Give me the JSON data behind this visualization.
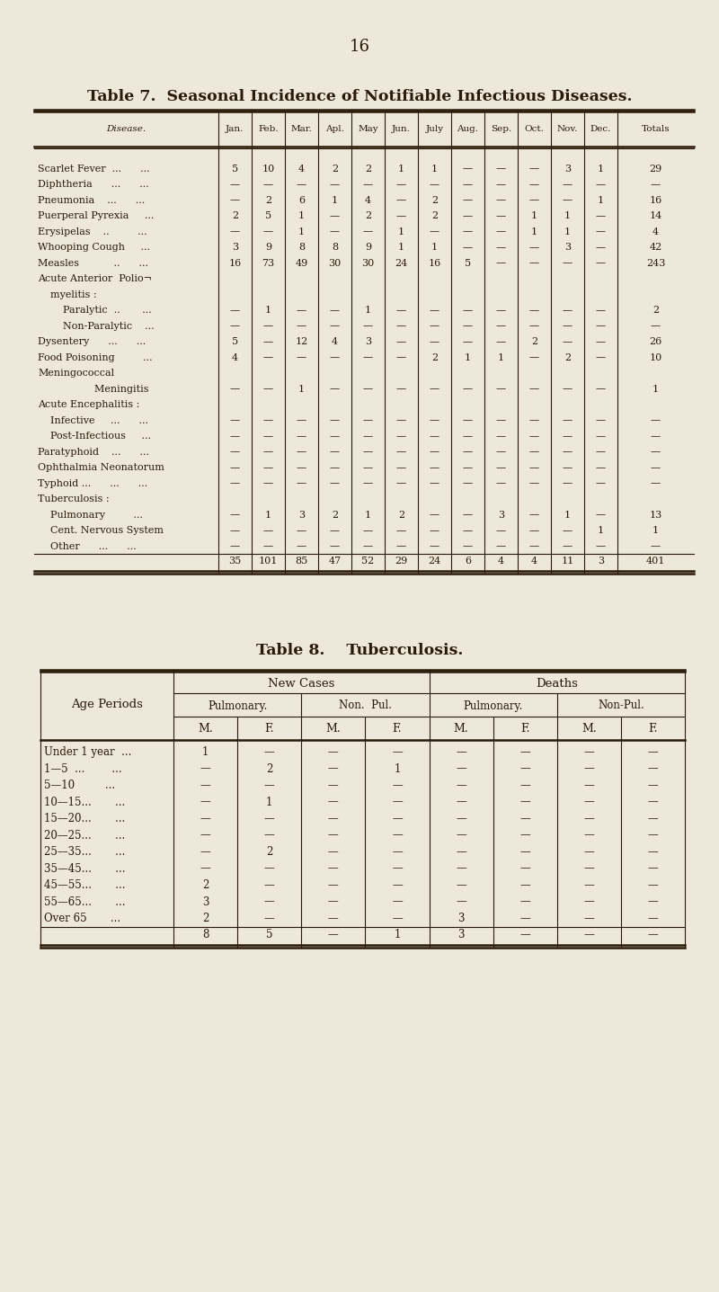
{
  "page_number": "16",
  "bg_color": "#ede8da",
  "table7_title": "Table 7.  Seasonal Incidence of Notifiable Infectious Diseases.",
  "table7_header": [
    "Disease.",
    "Jan.",
    "Feb.",
    "Mar.",
    "Apl.",
    "May",
    "Jun.",
    "July",
    "Aug.",
    "Sep.",
    "Oct.",
    "Nov.",
    "Dec.",
    "Totals"
  ],
  "table7_rows": [
    [
      "Scarlet Fever  ...      ...",
      "5",
      "10",
      "4",
      "2",
      "2",
      "1",
      "1",
      "—",
      "—",
      "—",
      "3",
      "1",
      "29"
    ],
    [
      "Diphtheria      ...      ...",
      "—",
      "—",
      "—",
      "—",
      "—",
      "—",
      "—",
      "—",
      "—",
      "—",
      "—",
      "—",
      "—"
    ],
    [
      "Pneumonia    ...      ...",
      "—",
      "2",
      "6",
      "1",
      "4",
      "—",
      "2",
      "—",
      "—",
      "—",
      "—",
      "1",
      "16"
    ],
    [
      "Puerperal Pyrexia     ...",
      "2",
      "5",
      "1",
      "—",
      "2",
      "—",
      "2",
      "—",
      "—",
      "1",
      "1",
      "—",
      "14"
    ],
    [
      "Erysipelas    ..         ...",
      "—",
      "—",
      "1",
      "—",
      "—",
      "1",
      "—",
      "—",
      "—",
      "1",
      "1",
      "—",
      "4"
    ],
    [
      "Whooping Cough     ...",
      "3",
      "9",
      "8",
      "8",
      "9",
      "1",
      "1",
      "—",
      "—",
      "—",
      "3",
      "—",
      "42"
    ],
    [
      "Measles           ..      ...",
      "16",
      "73",
      "49",
      "30",
      "30",
      "24",
      "16",
      "5",
      "—",
      "—",
      "—",
      "—",
      "243"
    ],
    [
      "Acute Anterior  Polio¬",
      "",
      "",
      "",
      "",
      "",
      "",
      "",
      "",
      "",
      "",
      "",
      "",
      ""
    ],
    [
      "    myelitis :",
      "",
      "",
      "",
      "",
      "",
      "",
      "",
      "",
      "",
      "",
      "",
      "",
      ""
    ],
    [
      "        Paralytic  ..       ...",
      "—",
      "1",
      "—",
      "—",
      "1",
      "—",
      "—",
      "—",
      "—",
      "—",
      "—",
      "—",
      "2"
    ],
    [
      "        Non-Paralytic    ...",
      "—",
      "—",
      "—",
      "—",
      "—",
      "—",
      "—",
      "—",
      "—",
      "—",
      "—",
      "—",
      "—"
    ],
    [
      "Dysentery      ...      ...",
      "5",
      "—",
      "12",
      "4",
      "3",
      "—",
      "—",
      "—",
      "—",
      "2",
      "—",
      "—",
      "26"
    ],
    [
      "Food Poisoning         ...",
      "4",
      "—",
      "—",
      "—",
      "—",
      "—",
      "2",
      "1",
      "1",
      "—",
      "2",
      "—",
      "10"
    ],
    [
      "Meningococcal",
      "",
      "",
      "",
      "",
      "",
      "",
      "",
      "",
      "",
      "",
      "",
      "",
      ""
    ],
    [
      "                  Meningitis",
      "—",
      "—",
      "1",
      "—",
      "—",
      "—",
      "—",
      "—",
      "—",
      "—",
      "—",
      "—",
      "1"
    ],
    [
      "Acute Encephalitis :",
      "",
      "",
      "",
      "",
      "",
      "",
      "",
      "",
      "",
      "",
      "",
      "",
      ""
    ],
    [
      "    Infective     ...      ...",
      "—",
      "—",
      "—",
      "—",
      "—",
      "—",
      "—",
      "—",
      "—",
      "—",
      "—",
      "—",
      "—"
    ],
    [
      "    Post-Infectious     ...",
      "—",
      "—",
      "—",
      "—",
      "—",
      "—",
      "—",
      "—",
      "—",
      "—",
      "—",
      "—",
      "—"
    ],
    [
      "Paratyphoid    ...      ...",
      "—",
      "—",
      "—",
      "—",
      "—",
      "—",
      "—",
      "—",
      "—",
      "—",
      "—",
      "—",
      "—"
    ],
    [
      "Ophthalmia Neonatorum",
      "—",
      "—",
      "—",
      "—",
      "—",
      "—",
      "—",
      "—",
      "—",
      "—",
      "—",
      "—",
      "—"
    ],
    [
      "Typhoid ...      ...      ...",
      "—",
      "—",
      "—",
      "—",
      "—",
      "—",
      "—",
      "—",
      "—",
      "—",
      "—",
      "—",
      "—"
    ],
    [
      "Tuberculosis :",
      "",
      "",
      "",
      "",
      "",
      "",
      "",
      "",
      "",
      "",
      "",
      "",
      ""
    ],
    [
      "    Pulmonary         ...",
      "—",
      "1",
      "3",
      "2",
      "1",
      "2",
      "—",
      "—",
      "3",
      "—",
      "1",
      "—",
      "13"
    ],
    [
      "    Cent. Nervous System",
      "—",
      "—",
      "—",
      "—",
      "—",
      "—",
      "—",
      "—",
      "—",
      "—",
      "—",
      "1",
      "1"
    ],
    [
      "    Other      ...      ...",
      "—",
      "—",
      "—",
      "—",
      "—",
      "—",
      "—",
      "—",
      "—",
      "—",
      "—",
      "—",
      "—"
    ]
  ],
  "table7_totals": [
    "",
    "35",
    "101",
    "85",
    "47",
    "52",
    "29",
    "24",
    "6",
    "4",
    "4",
    "11",
    "3",
    "401"
  ],
  "table8_title": "Table 8.    Tuberculosis.",
  "table8_rows": [
    [
      "Under 1 year  ...",
      "1",
      "—",
      "—",
      "—",
      "—",
      "—",
      "—",
      "—"
    ],
    [
      "1—5  ...        ...",
      "—",
      "2",
      "—",
      "1",
      "—",
      "—",
      "—",
      "—"
    ],
    [
      "5—10         ...",
      "—",
      "—",
      "—",
      "—",
      "—",
      "—",
      "—",
      "—"
    ],
    [
      "10—15...       ...",
      "—",
      "1",
      "—",
      "—",
      "—",
      "—",
      "—",
      "—"
    ],
    [
      "15—20...       ...",
      "—",
      "—",
      "—",
      "—",
      "—",
      "—",
      "—",
      "—"
    ],
    [
      "20—25...       ...",
      "—",
      "—",
      "—",
      "—",
      "—",
      "—",
      "—",
      "—"
    ],
    [
      "25—35...       ...",
      "—",
      "2",
      "—",
      "—",
      "—",
      "—",
      "—",
      "—"
    ],
    [
      "35—45...       ...",
      "—",
      "—",
      "—",
      "—",
      "—",
      "—",
      "—",
      "—"
    ],
    [
      "45—55...       ...",
      "2",
      "—",
      "—",
      "—",
      "—",
      "—",
      "—",
      "—"
    ],
    [
      "55—65...       ...",
      "3",
      "—",
      "—",
      "—",
      "—",
      "—",
      "—",
      "—"
    ],
    [
      "Over 65       ...",
      "2",
      "—",
      "—",
      "—",
      "3",
      "—",
      "—",
      "—"
    ]
  ],
  "table8_totals": [
    "",
    "8",
    "5",
    "—",
    "1",
    "3",
    "—",
    "—",
    "—"
  ]
}
